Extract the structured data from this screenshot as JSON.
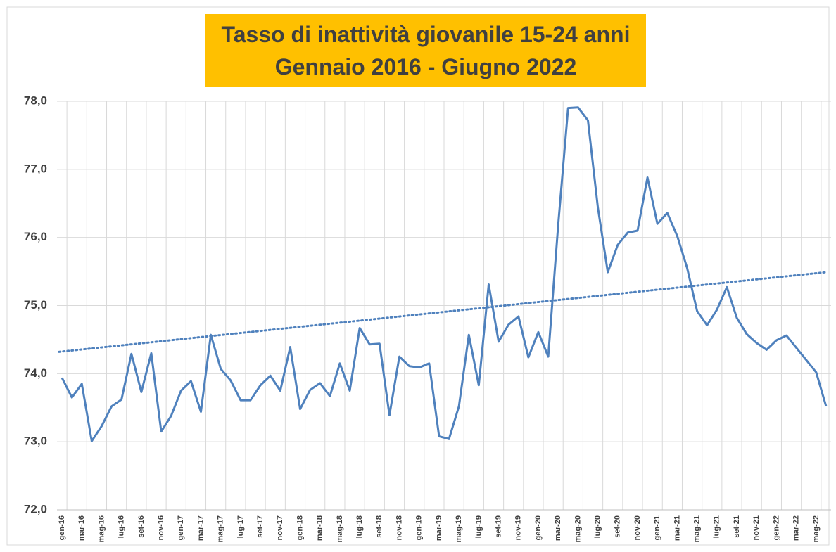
{
  "chart_data": {
    "type": "line",
    "title": [
      "Tasso di inattività giovanile 15-24 anni",
      "Gennaio 2016 - Giugno 2022"
    ],
    "categories": [
      "gen-16",
      null,
      "mar-16",
      null,
      "mag-16",
      null,
      "lug-16",
      null,
      "set-16",
      null,
      "nov-16",
      null,
      "gen-17",
      null,
      "mar-17",
      null,
      "mag-17",
      null,
      "lug-17",
      null,
      "set-17",
      null,
      "nov-17",
      null,
      "gen-18",
      null,
      "mar-18",
      null,
      "mag-18",
      null,
      "lug-18",
      null,
      "set-18",
      null,
      "nov-18",
      null,
      "gen-19",
      null,
      "mar-19",
      null,
      "mag-19",
      null,
      "lug-19",
      null,
      "set-19",
      null,
      "nov-19",
      null,
      "gen-20",
      null,
      "mar-20",
      null,
      "mag-20",
      null,
      "lug-20",
      null,
      "set-20",
      null,
      "nov-20",
      null,
      "gen-21",
      null,
      "mar-21",
      null,
      "mag-21",
      null,
      "lug-21",
      null,
      "set-21",
      null,
      "nov-21",
      null,
      "gen-22",
      null,
      "mar-22",
      null,
      "mag-22",
      null
    ],
    "series": [
      {
        "name": "Tasso di inattività",
        "color": "#4f81bd",
        "values": [
          73.94,
          73.65,
          73.85,
          73.01,
          73.23,
          73.52,
          73.62,
          74.29,
          73.73,
          74.3,
          73.15,
          73.38,
          73.75,
          73.89,
          73.44,
          74.57,
          74.07,
          73.9,
          73.61,
          73.61,
          73.83,
          73.97,
          73.75,
          74.39,
          73.48,
          73.76,
          73.86,
          73.67,
          74.15,
          73.75,
          74.67,
          74.43,
          74.44,
          73.39,
          74.25,
          74.11,
          74.09,
          74.15,
          73.08,
          73.04,
          73.52,
          74.57,
          73.83,
          75.31,
          74.47,
          74.72,
          74.84,
          74.24,
          74.61,
          74.25,
          76.18,
          77.9,
          77.91,
          77.72,
          76.44,
          75.49,
          75.89,
          76.07,
          76.1,
          76.88,
          76.2,
          76.36,
          76.02,
          75.55,
          74.92,
          74.71,
          74.94,
          75.27,
          74.82,
          74.58,
          74.45,
          74.35,
          74.49,
          74.56,
          74.38,
          74.2,
          74.02,
          73.52
        ]
      }
    ],
    "trend": {
      "color": "#4f81bd",
      "values": [
        74.32,
        75.49
      ]
    },
    "ylim": [
      72,
      78
    ],
    "yticks": [
      {
        "value": 72,
        "label": "72,0"
      },
      {
        "value": 73,
        "label": "73,0"
      },
      {
        "value": 74,
        "label": "74,0"
      },
      {
        "value": 75,
        "label": "75,0"
      },
      {
        "value": 76,
        "label": "76,0"
      },
      {
        "value": 77,
        "label": "77,0"
      },
      {
        "value": 78,
        "label": "78,0"
      }
    ],
    "grid": true
  }
}
